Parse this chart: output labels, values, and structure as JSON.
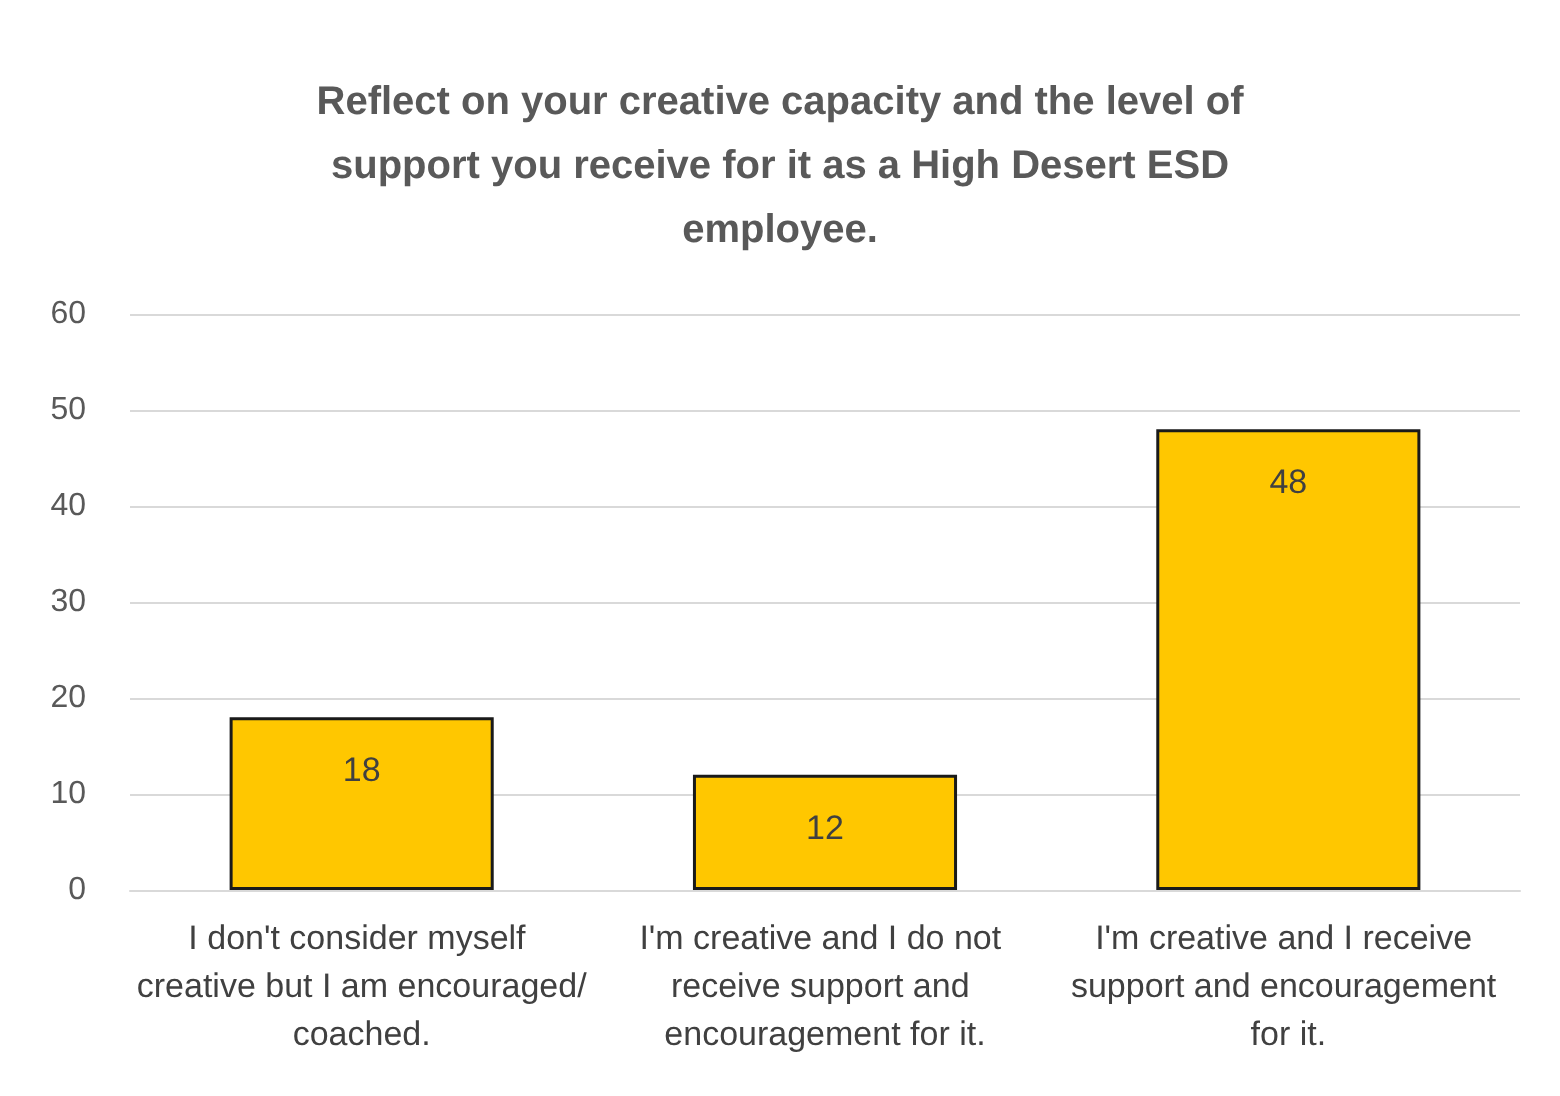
{
  "chart_data": {
    "type": "bar",
    "title": "Reflect on your creative capacity and the level of support you receive for it as a High Desert ESD employee.",
    "categories": [
      "I don't consider myself creative but I am encouraged/coached.",
      "I'm creative and I do not receive support and encouragement for it.",
      "I'm creative and I receive support and encouragement for it."
    ],
    "values": [
      18,
      12,
      48
    ],
    "color": "#ffc700",
    "ylim": [
      0,
      60
    ],
    "yticks": [
      0,
      10,
      20,
      30,
      40,
      50,
      60
    ],
    "grid": "y",
    "data_labels": true
  }
}
